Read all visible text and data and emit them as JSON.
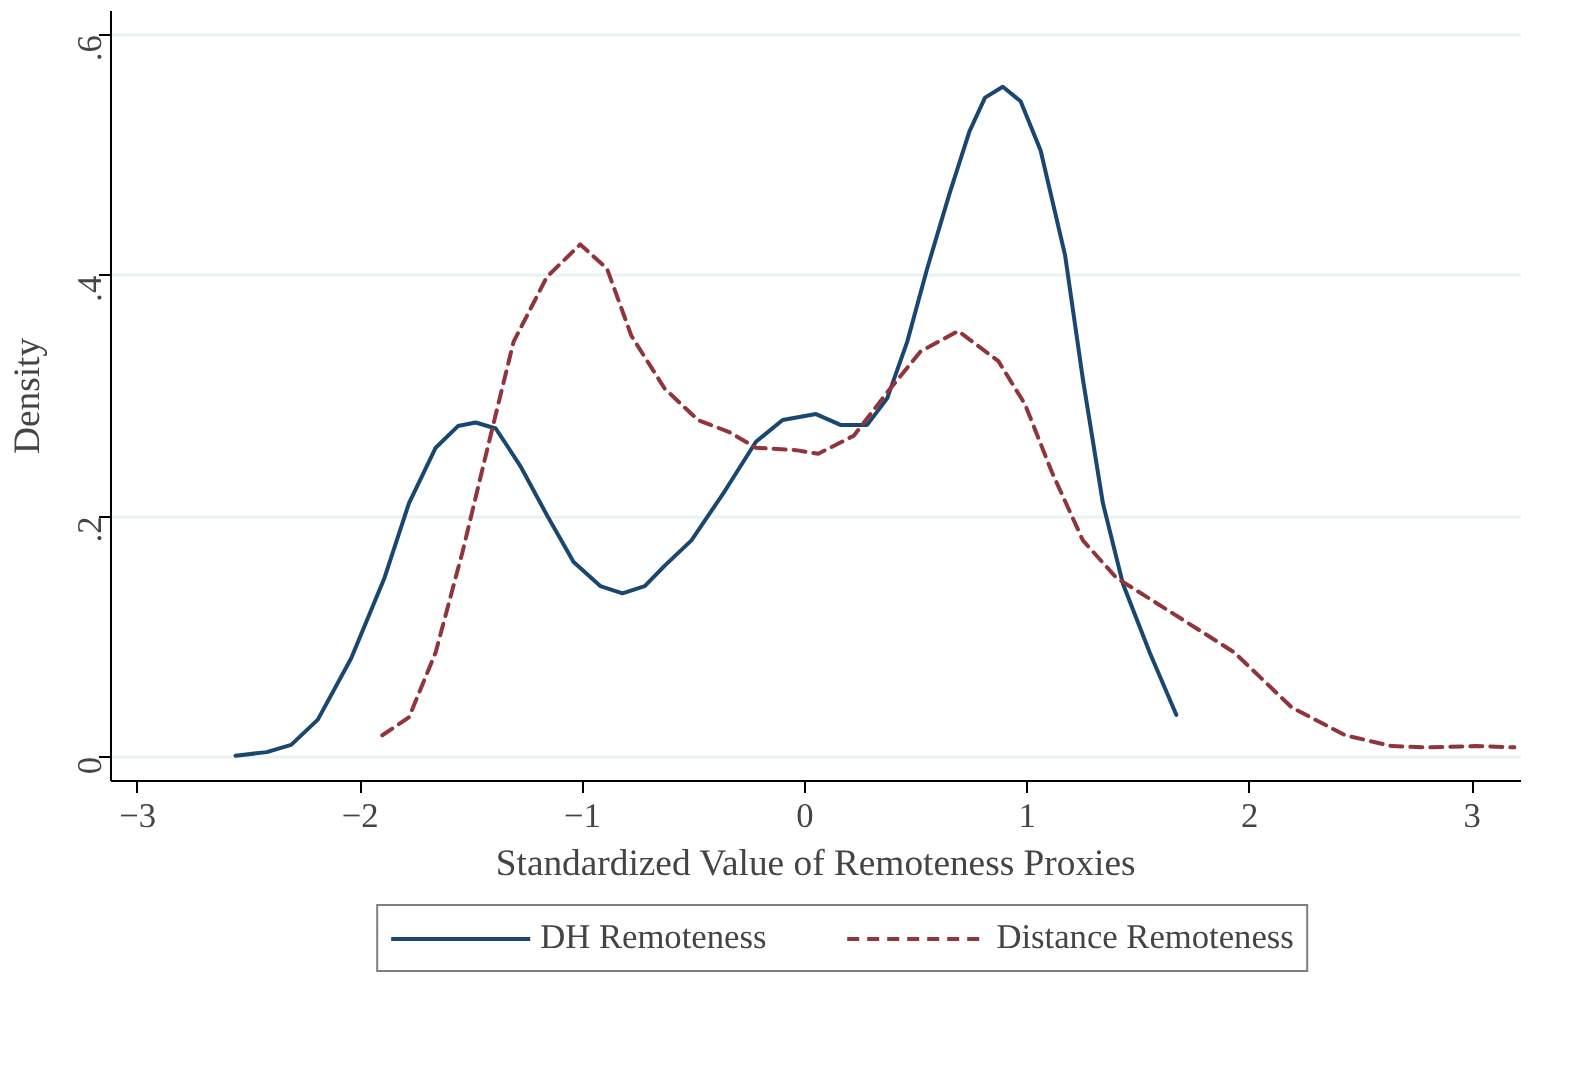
{
  "chart_data": {
    "type": "line",
    "xlabel": "Standardized Value of Remoteness Proxies",
    "ylabel": "Density",
    "xlim": [
      -3.12,
      3.22
    ],
    "ylim": [
      -0.02,
      0.62
    ],
    "xticks": [
      -3,
      -2,
      -1,
      0,
      1,
      2,
      3
    ],
    "yticks": [
      {
        "value": 0,
        "label": "0"
      },
      {
        "value": 0.2,
        "label": ".2"
      },
      {
        "value": 0.4,
        "label": ".4"
      },
      {
        "value": 0.6,
        "label": ".6"
      }
    ],
    "grid": "y",
    "legend": "bottom",
    "series": [
      {
        "name": "DH Remoteness",
        "color": "#1a476f",
        "line_style": "solid",
        "x": [
          -2.56,
          -2.42,
          -2.31,
          -2.19,
          -2.04,
          -1.89,
          -1.78,
          -1.66,
          -1.56,
          -1.48,
          -1.39,
          -1.28,
          -1.16,
          -1.04,
          -0.92,
          -0.82,
          -0.72,
          -0.63,
          -0.51,
          -0.36,
          -0.22,
          -0.1,
          0.05,
          0.16,
          0.28,
          0.37,
          0.46,
          0.55,
          0.65,
          0.74,
          0.81,
          0.89,
          0.97,
          1.06,
          1.17,
          1.25,
          1.34,
          1.43,
          1.55,
          1.67
        ],
        "values": [
          0.001,
          0.004,
          0.01,
          0.031,
          0.082,
          0.149,
          0.211,
          0.257,
          0.275,
          0.278,
          0.273,
          0.242,
          0.201,
          0.162,
          0.142,
          0.136,
          0.142,
          0.159,
          0.18,
          0.221,
          0.262,
          0.28,
          0.285,
          0.276,
          0.276,
          0.298,
          0.345,
          0.406,
          0.468,
          0.52,
          0.548,
          0.557,
          0.545,
          0.504,
          0.417,
          0.314,
          0.211,
          0.144,
          0.087,
          0.035
        ]
      },
      {
        "name": "Distance Remoteness",
        "color": "#90353b",
        "line_style": "dashed",
        "x": [
          -1.9,
          -1.78,
          -1.66,
          -1.54,
          -1.42,
          -1.31,
          -1.16,
          -1.01,
          -0.89,
          -0.78,
          -0.63,
          -0.48,
          -0.34,
          -0.22,
          -0.04,
          0.06,
          0.22,
          0.37,
          0.52,
          0.69,
          0.87,
          0.99,
          1.11,
          1.25,
          1.4,
          1.64,
          1.93,
          2.19,
          2.43,
          2.64,
          2.78,
          3.02,
          3.19
        ],
        "values": [
          0.018,
          0.033,
          0.087,
          0.17,
          0.262,
          0.345,
          0.399,
          0.426,
          0.406,
          0.35,
          0.306,
          0.28,
          0.27,
          0.257,
          0.255,
          0.252,
          0.267,
          0.303,
          0.337,
          0.354,
          0.329,
          0.293,
          0.237,
          0.18,
          0.149,
          0.121,
          0.087,
          0.041,
          0.018,
          0.009,
          0.008,
          0.009,
          0.008
        ]
      }
    ]
  }
}
